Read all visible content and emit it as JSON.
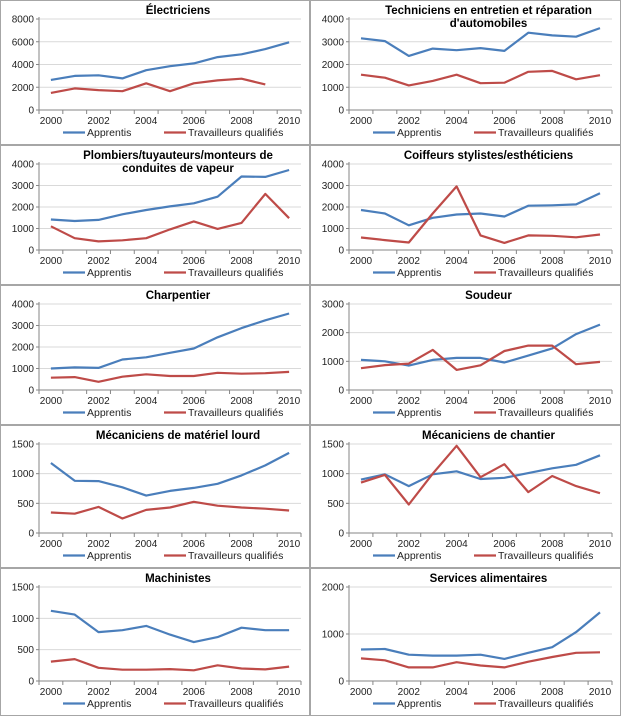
{
  "colors": {
    "apprentis": "#4a7ebb",
    "travailleurs": "#be4b48",
    "grid": "#d9d9d9",
    "axis": "#868686"
  },
  "legend": {
    "apprentis": "Apprentis",
    "travailleurs": "Travailleurs qualifiés"
  },
  "chart_data": [
    {
      "type": "line",
      "title": "Électriciens",
      "title_lines": [
        "Électriciens"
      ],
      "x": [
        2000,
        2001,
        2002,
        2003,
        2004,
        2005,
        2006,
        2007,
        2008,
        2009,
        2010
      ],
      "xticks": [
        "2000",
        "2002",
        "2004",
        "2006",
        "2008",
        "2010"
      ],
      "ylim": [
        0,
        8000
      ],
      "yticks": [
        0,
        2000,
        4000,
        6000,
        8000
      ],
      "grid": true,
      "legend_position": "bottom",
      "series": [
        {
          "name": "Apprentis",
          "values": [
            2650,
            3000,
            3050,
            2780,
            3500,
            3850,
            4100,
            4650,
            4900,
            5350,
            5950
          ]
        },
        {
          "name": "Travailleurs qualifiés",
          "values": [
            1500,
            1900,
            1750,
            1650,
            2350,
            1650,
            2350,
            2600,
            2750,
            2250,
            null
          ]
        }
      ]
    },
    {
      "type": "line",
      "title": "Techniciens en entretien et réparation d'automobiles",
      "title_lines": [
        "Techniciens en entretien et réparation",
        "d'automobiles"
      ],
      "x": [
        2000,
        2001,
        2002,
        2003,
        2004,
        2005,
        2006,
        2007,
        2008,
        2009,
        2010
      ],
      "xticks": [
        "2000",
        "2002",
        "2004",
        "2006",
        "2008",
        "2010"
      ],
      "ylim": [
        0,
        4000
      ],
      "yticks": [
        0,
        1000,
        2000,
        3000,
        4000
      ],
      "grid": true,
      "legend_position": "bottom",
      "series": [
        {
          "name": "Apprentis",
          "values": [
            3150,
            3030,
            2380,
            2700,
            2630,
            2720,
            2600,
            3400,
            3280,
            3220,
            3600
          ]
        },
        {
          "name": "Travailleurs qualifiés",
          "values": [
            1550,
            1420,
            1080,
            1280,
            1550,
            1180,
            1200,
            1680,
            1720,
            1350,
            1530
          ]
        }
      ]
    },
    {
      "type": "line",
      "title": "Plombiers/tuyauteurs/monteurs de conduites de vapeur",
      "title_lines": [
        "Plombiers/tuyauteurs/monteurs de",
        "conduites de vapeur"
      ],
      "x": [
        2000,
        2001,
        2002,
        2003,
        2004,
        2005,
        2006,
        2007,
        2008,
        2009,
        2010
      ],
      "xticks": [
        "2000",
        "2002",
        "2004",
        "2006",
        "2008",
        "2010"
      ],
      "ylim": [
        0,
        4000
      ],
      "yticks": [
        0,
        1000,
        2000,
        3000,
        4000
      ],
      "grid": true,
      "legend_position": "bottom",
      "series": [
        {
          "name": "Apprentis",
          "values": [
            1420,
            1350,
            1400,
            1660,
            1860,
            2030,
            2170,
            2480,
            3420,
            3400,
            3720
          ]
        },
        {
          "name": "Travailleurs qualifiés",
          "values": [
            1100,
            550,
            400,
            450,
            550,
            960,
            1330,
            980,
            1260,
            2610,
            1480
          ]
        }
      ]
    },
    {
      "type": "line",
      "title": "Coiffeurs stylistes/esthéticiens",
      "title_lines": [
        "Coiffeurs stylistes/esthéticiens"
      ],
      "x": [
        2000,
        2001,
        2002,
        2003,
        2004,
        2005,
        2006,
        2007,
        2008,
        2009,
        2010
      ],
      "xticks": [
        "2000",
        "2002",
        "2004",
        "2006",
        "2008",
        "2010"
      ],
      "ylim": [
        0,
        4000
      ],
      "yticks": [
        0,
        1000,
        2000,
        3000,
        4000
      ],
      "grid": true,
      "legend_position": "bottom",
      "series": [
        {
          "name": "Apprentis",
          "values": [
            1860,
            1700,
            1150,
            1500,
            1650,
            1700,
            1560,
            2060,
            2080,
            2120,
            2640
          ]
        },
        {
          "name": "Travailleurs qualifiés",
          "values": [
            580,
            460,
            350,
            1700,
            2960,
            680,
            330,
            680,
            660,
            590,
            720
          ]
        }
      ]
    },
    {
      "type": "line",
      "title": "Charpentier",
      "title_lines": [
        "Charpentier"
      ],
      "x": [
        2000,
        2001,
        2002,
        2003,
        2004,
        2005,
        2006,
        2007,
        2008,
        2009,
        2010
      ],
      "xticks": [
        "2000",
        "2002",
        "2004",
        "2006",
        "2008",
        "2010"
      ],
      "ylim": [
        0,
        4000
      ],
      "yticks": [
        0,
        1000,
        2000,
        3000,
        4000
      ],
      "grid": true,
      "legend_position": "bottom",
      "series": [
        {
          "name": "Apprentis",
          "values": [
            1000,
            1050,
            1030,
            1420,
            1520,
            1730,
            1930,
            2450,
            2880,
            3240,
            3560
          ]
        },
        {
          "name": "Travailleurs qualifiés",
          "values": [
            570,
            600,
            380,
            620,
            730,
            650,
            650,
            800,
            760,
            780,
            840
          ]
        }
      ]
    },
    {
      "type": "line",
      "title": "Soudeur",
      "title_lines": [
        "Soudeur"
      ],
      "x": [
        2000,
        2001,
        2002,
        2003,
        2004,
        2005,
        2006,
        2007,
        2008,
        2009,
        2010
      ],
      "xticks": [
        "2000",
        "2002",
        "2004",
        "2006",
        "2008",
        "2010"
      ],
      "ylim": [
        0,
        3000
      ],
      "yticks": [
        0,
        1000,
        2000,
        3000
      ],
      "grid": true,
      "legend_position": "bottom",
      "series": [
        {
          "name": "Apprentis",
          "values": [
            1050,
            1000,
            850,
            1050,
            1120,
            1120,
            960,
            1200,
            1450,
            1950,
            2280
          ]
        },
        {
          "name": "Travailleurs qualifiés",
          "values": [
            760,
            870,
            920,
            1400,
            700,
            860,
            1360,
            1550,
            1550,
            900,
            980
          ]
        }
      ]
    },
    {
      "type": "line",
      "title": "Mécaniciens de matériel lourd",
      "title_lines": [
        "Mécaniciens de matériel lourd"
      ],
      "x": [
        2000,
        2001,
        2002,
        2003,
        2004,
        2005,
        2006,
        2007,
        2008,
        2009,
        2010
      ],
      "xticks": [
        "2000",
        "2002",
        "2004",
        "2006",
        "2008",
        "2010"
      ],
      "ylim": [
        0,
        1500
      ],
      "yticks": [
        0,
        500,
        1000,
        1500
      ],
      "grid": true,
      "legend_position": "bottom",
      "series": [
        {
          "name": "Apprentis",
          "values": [
            1180,
            880,
            875,
            770,
            630,
            710,
            760,
            830,
            970,
            1140,
            1350
          ]
        },
        {
          "name": "Travailleurs qualifiés",
          "values": [
            345,
            325,
            440,
            245,
            390,
            430,
            525,
            460,
            430,
            410,
            380
          ]
        }
      ]
    },
    {
      "type": "line",
      "title": "Mécaniciens de chantier",
      "title_lines": [
        "Mécaniciens de chantier"
      ],
      "x": [
        2000,
        2001,
        2002,
        2003,
        2004,
        2005,
        2006,
        2007,
        2008,
        2009,
        2010
      ],
      "xticks": [
        "2000",
        "2002",
        "2004",
        "2006",
        "2008",
        "2010"
      ],
      "ylim": [
        0,
        1500
      ],
      "yticks": [
        0,
        500,
        1000,
        1500
      ],
      "grid": true,
      "legend_position": "bottom",
      "series": [
        {
          "name": "Apprentis",
          "values": [
            900,
            990,
            790,
            990,
            1040,
            910,
            930,
            1010,
            1090,
            1150,
            1310
          ]
        },
        {
          "name": "Travailleurs qualifiés",
          "values": [
            850,
            980,
            480,
            1000,
            1470,
            940,
            1160,
            690,
            960,
            790,
            670
          ]
        }
      ]
    },
    {
      "type": "line",
      "title": "Machinistes",
      "title_lines": [
        "Machinistes"
      ],
      "x": [
        2000,
        2001,
        2002,
        2003,
        2004,
        2005,
        2006,
        2007,
        2008,
        2009,
        2010
      ],
      "xticks": [
        "2000",
        "2002",
        "2004",
        "2006",
        "2008",
        "2010"
      ],
      "ylim": [
        0,
        1500
      ],
      "yticks": [
        0,
        500,
        1000,
        1500
      ],
      "grid": true,
      "legend_position": "bottom",
      "series": [
        {
          "name": "Apprentis",
          "values": [
            1120,
            1060,
            780,
            810,
            880,
            740,
            620,
            700,
            850,
            810,
            810
          ]
        },
        {
          "name": "Travailleurs qualifiés",
          "values": [
            310,
            350,
            210,
            180,
            180,
            190,
            170,
            250,
            200,
            185,
            230
          ]
        }
      ]
    },
    {
      "type": "line",
      "title": "Services alimentaires",
      "title_lines": [
        "Services alimentaires"
      ],
      "x": [
        2000,
        2001,
        2002,
        2003,
        2004,
        2005,
        2006,
        2007,
        2008,
        2009,
        2010
      ],
      "xticks": [
        "2000",
        "2002",
        "2004",
        "2006",
        "2008",
        "2010"
      ],
      "ylim": [
        0,
        2000
      ],
      "yticks": [
        0,
        1000,
        2000
      ],
      "grid": true,
      "legend_position": "bottom",
      "series": [
        {
          "name": "Apprentis",
          "values": [
            670,
            680,
            560,
            540,
            540,
            560,
            470,
            600,
            720,
            1040,
            1460
          ]
        },
        {
          "name": "Travailleurs qualifiés",
          "values": [
            480,
            440,
            290,
            290,
            400,
            330,
            290,
            410,
            510,
            600,
            610
          ]
        }
      ]
    }
  ]
}
